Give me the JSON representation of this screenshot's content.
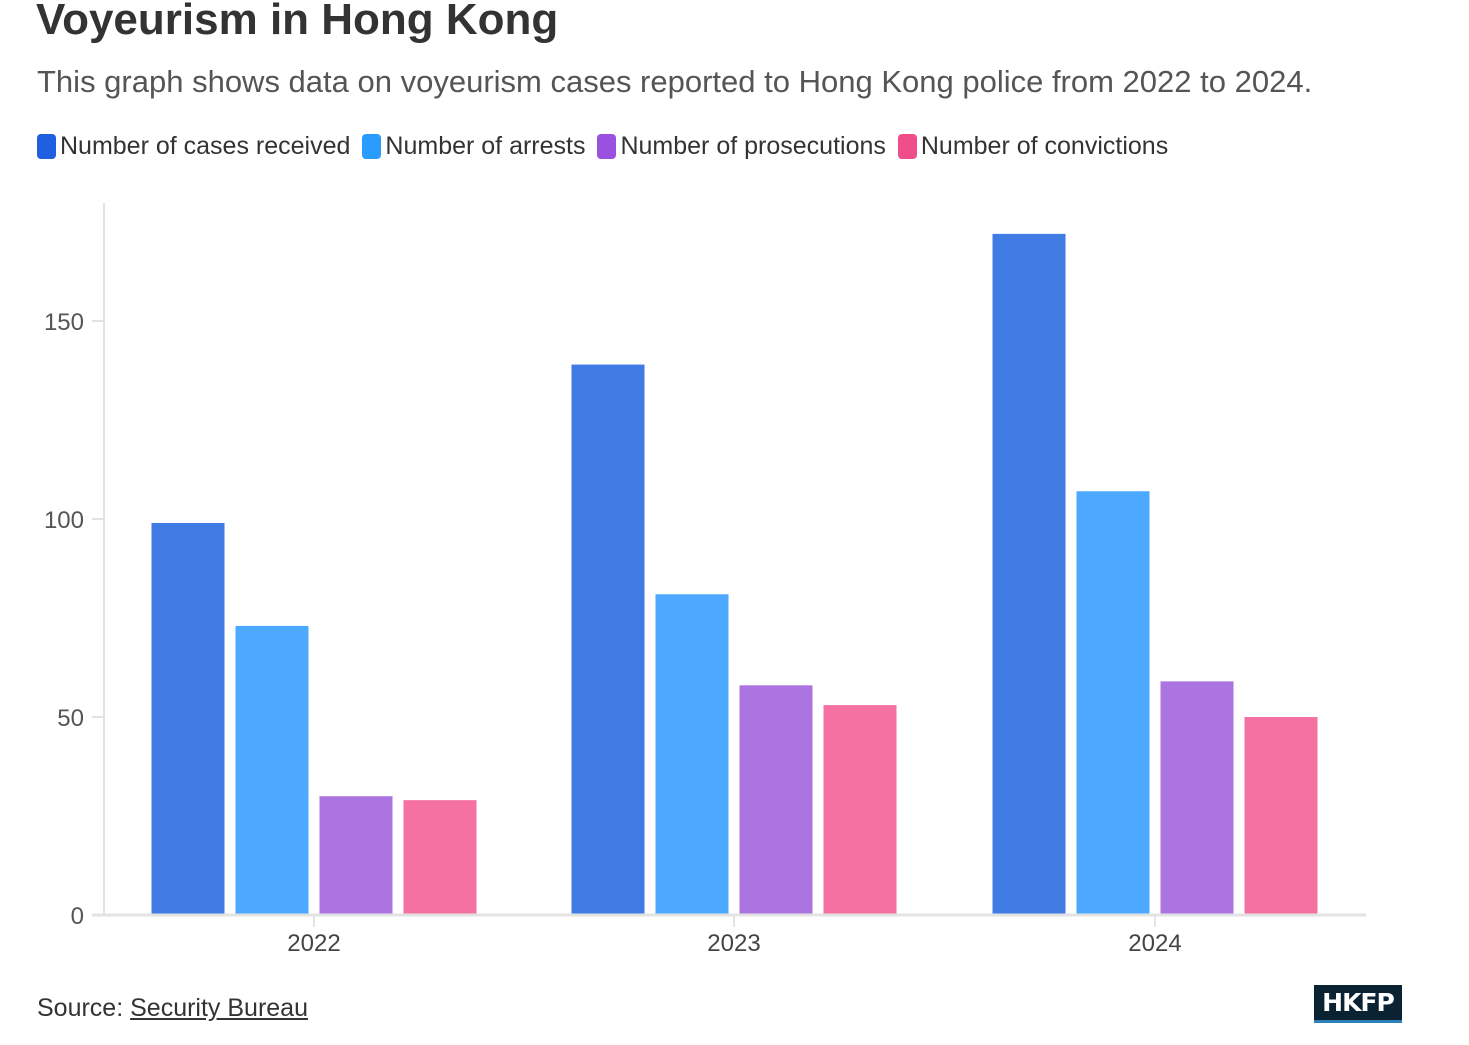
{
  "chart_data": {
    "type": "bar",
    "title": "Voyeurism in Hong Kong",
    "subtitle": "This graph shows data on voyeurism cases reported to Hong Kong police from 2022 to 2024.",
    "categories": [
      "2022",
      "2023",
      "2024"
    ],
    "series": [
      {
        "name": "Number of cases received",
        "color": "#417be4",
        "swatch": "#1f5fe0",
        "values": [
          99,
          139,
          172
        ]
      },
      {
        "name": "Number of arrests",
        "color": "#4da9ff",
        "swatch": "#2a9cff",
        "values": [
          73,
          81,
          107
        ]
      },
      {
        "name": "Number of prosecutions",
        "color": "#ab74e0",
        "swatch": "#9b51e0",
        "values": [
          30,
          58,
          59
        ]
      },
      {
        "name": "Number of convictions",
        "color": "#f471a1",
        "swatch": "#f04d8b",
        "values": [
          29,
          53,
          50
        ]
      }
    ],
    "ylim": [
      0,
      180
    ],
    "yticks": [
      0,
      50,
      100,
      150
    ],
    "xlabel": "",
    "ylabel": "",
    "grid": false,
    "legend_position": "top-left"
  },
  "source": {
    "prefix": "Source: ",
    "link_label": "Security Bureau"
  },
  "logo": {
    "text": "HKFP"
  }
}
